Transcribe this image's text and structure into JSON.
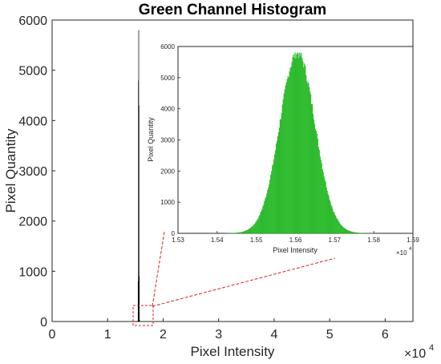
{
  "chart_data": [
    {
      "type": "bar",
      "title": "Green Channel Histogram",
      "xlabel": "Pixel Intensity",
      "ylabel": "Pixel Quantity",
      "xlim": [
        0,
        65000
      ],
      "ylim": [
        0,
        6000
      ],
      "x_ticks": [
        "0",
        "1",
        "2",
        "3",
        "4",
        "5",
        "6"
      ],
      "x_exponent": "×10",
      "x_exponent_power": "4",
      "y_ticks": [
        "0",
        "1000",
        "2000",
        "3000",
        "4000",
        "5000",
        "6000"
      ],
      "color": "#000000",
      "x": [
        15450,
        15500,
        15550,
        15600,
        15650,
        15700,
        15750
      ],
      "values": [
        20,
        800,
        4800,
        5800,
        4300,
        900,
        30
      ]
    },
    {
      "type": "bar",
      "xlabel": "Pixel Intensity",
      "ylabel": "Pixel Quantity",
      "xlim": [
        15300,
        15900
      ],
      "ylim": [
        0,
        6000
      ],
      "x_ticks": [
        "1.53",
        "1.54",
        "1.55",
        "1.56",
        "1.57",
        "1.58",
        "1.59"
      ],
      "x_exponent": "×10",
      "x_exponent_power": "4",
      "y_ticks": [
        "0",
        "1000",
        "2000",
        "3000",
        "4000",
        "5000",
        "6000"
      ],
      "color": "#33cc33",
      "distribution": {
        "mean": 15605,
        "std": 45,
        "peak": 5800,
        "x_min": 15420,
        "x_max": 15800,
        "bin_width": 2
      }
    }
  ]
}
